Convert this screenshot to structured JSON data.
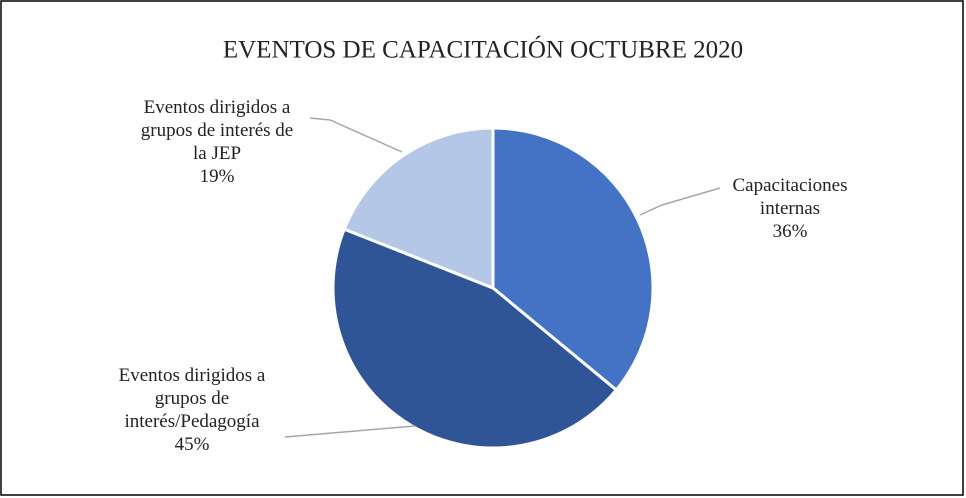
{
  "chart_data": {
    "type": "pie",
    "title": "EVENTOS DE CAPACITACIÓN OCTUBRE 2020",
    "categories": [
      "Capacitaciones internas",
      "Eventos dirigidos a grupos de interés/Pedagogía",
      "Eventos dirigidos a grupos de interés de la JEP"
    ],
    "values": [
      36,
      45,
      19
    ],
    "value_labels": [
      "36%",
      "45%",
      "19%"
    ],
    "colors": [
      "#4472c4",
      "#2f5597",
      "#b4c7e7"
    ]
  }
}
